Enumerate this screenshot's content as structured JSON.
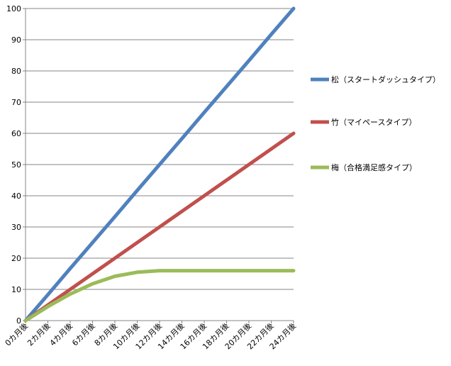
{
  "chart_data": {
    "type": "line",
    "x": [
      "0カ月後",
      "2カ月後",
      "4カ月後",
      "6カ月後",
      "8カ月後",
      "10カ月後",
      "12カ月後",
      "14カ月後",
      "16カ月後",
      "18カ月後",
      "20カ月後",
      "22カ月後",
      "24カ月後"
    ],
    "x_months": [
      0,
      2,
      4,
      6,
      8,
      10,
      12,
      14,
      16,
      18,
      20,
      22,
      24
    ],
    "ylim": [
      0,
      100
    ],
    "yticks": [
      0,
      10,
      20,
      30,
      40,
      50,
      60,
      70,
      80,
      90,
      100
    ],
    "grid": "horizontal",
    "legend": "right",
    "title": "",
    "xlabel": "",
    "ylabel": "",
    "series": [
      {
        "name": "松（スタートダッシュタイプ）",
        "color": "#4f81bd",
        "values": [
          0,
          8.3,
          16.7,
          25,
          33.3,
          41.7,
          50,
          58.3,
          66.7,
          75,
          83.3,
          91.7,
          100
        ]
      },
      {
        "name": "竹（マイペースタイプ）",
        "color": "#c0504d",
        "values": [
          0,
          5,
          10,
          15,
          20,
          25,
          30,
          35,
          40,
          45,
          50,
          55,
          60
        ]
      },
      {
        "name": "梅（合格満足感タイプ）",
        "color": "#9bbb59",
        "values": [
          0,
          4.5,
          8.5,
          11.8,
          14.2,
          15.5,
          16,
          16,
          16,
          16,
          16,
          16,
          16
        ]
      }
    ]
  }
}
